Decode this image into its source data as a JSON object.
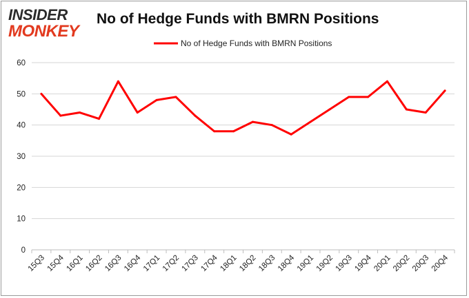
{
  "logo": {
    "line1": "INSIDER",
    "line2": "MONKEY"
  },
  "chart_data": {
    "type": "line",
    "title": "No of Hedge Funds with BMRN Positions",
    "xlabel": "",
    "ylabel": "",
    "categories": [
      "15Q3",
      "15Q4",
      "16Q1",
      "16Q2",
      "16Q3",
      "16Q4",
      "17Q1",
      "17Q2",
      "17Q3",
      "17Q4",
      "18Q1",
      "18Q2",
      "18Q3",
      "18Q4",
      "19Q1",
      "19Q2",
      "19Q3",
      "19Q4",
      "20Q1",
      "20Q2",
      "20Q3",
      "20Q4"
    ],
    "series": [
      {
        "name": "No of Hedge Funds with BMRN Positions",
        "color": "#ff0000",
        "values": [
          50,
          43,
          44,
          42,
          54,
          44,
          48,
          49,
          43,
          38,
          38,
          41,
          40,
          37,
          41,
          45,
          49,
          49,
          54,
          45,
          44,
          51
        ]
      }
    ],
    "ylim": [
      0,
      60
    ],
    "yticks": [
      0,
      10,
      20,
      30,
      40,
      50,
      60
    ],
    "grid": true,
    "legend_position": "top-center"
  }
}
